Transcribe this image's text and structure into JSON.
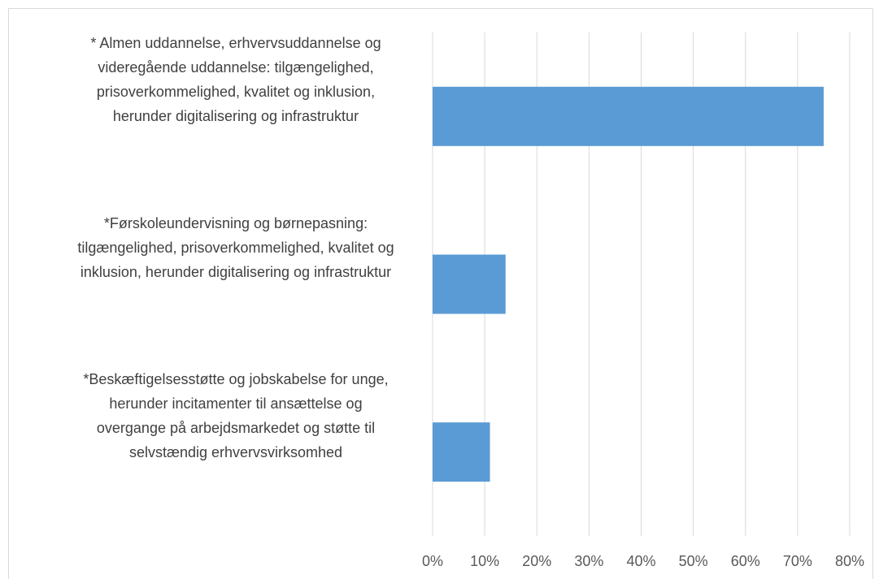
{
  "chart_data": {
    "type": "bar",
    "orientation": "horizontal",
    "categories": [
      "* Almen uddannelse, erhvervsuddannelse og\nvideregående uddannelse: tilgængelighed,\nprisoverkommelighed, kvalitet og inklusion,\nherunder digitalisering og infrastruktur",
      "*Førskoleundervisning og børnepasning:\ntilgængelighed, prisoverkommelighed, kvalitet og\ninklusion, herunder digitalisering og infrastruktur",
      "*Beskæftigelsesstøtte og jobskabelse for unge,\nherunder incitamenter til ansættelse og\novergange på arbejdsmarkedet og støtte til\nselvstændig erhvervsvirksomhed"
    ],
    "values": [
      75,
      14,
      11
    ],
    "color": "#5b9bd5",
    "xlim": [
      0,
      80
    ],
    "xticks": [
      {
        "value": 0,
        "label": "0%"
      },
      {
        "value": 10,
        "label": "10%"
      },
      {
        "value": 20,
        "label": "20%"
      },
      {
        "value": 30,
        "label": "30%"
      },
      {
        "value": 40,
        "label": "40%"
      },
      {
        "value": 50,
        "label": "50%"
      },
      {
        "value": 60,
        "label": "60%"
      },
      {
        "value": 70,
        "label": "70%"
      },
      {
        "value": 80,
        "label": "80%"
      }
    ],
    "grid": true
  }
}
